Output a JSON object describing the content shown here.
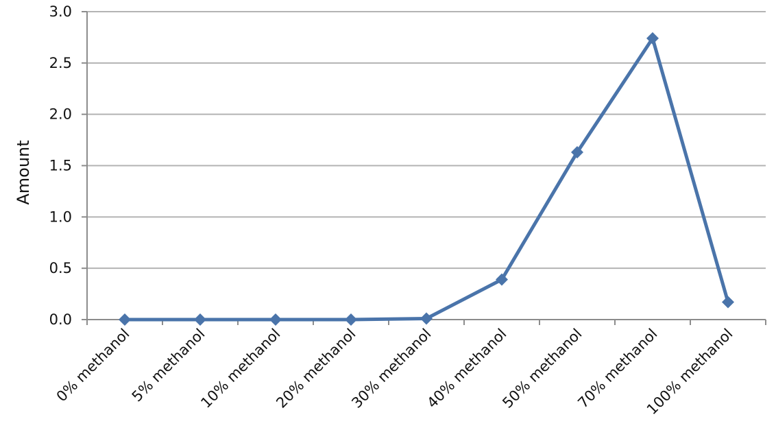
{
  "chart_data": {
    "type": "line",
    "title": "",
    "xlabel": "",
    "ylabel": "Amount",
    "categories": [
      "0% methanol",
      "5% methanol",
      "10% methanol",
      "20% methanol",
      "30% methanol",
      "40% methanol",
      "50% methanol",
      "70% methanol",
      "100% methanol"
    ],
    "series": [
      {
        "values": [
          0.0,
          0.0,
          0.0,
          0.0,
          0.01,
          0.39,
          1.63,
          2.74,
          0.17
        ]
      }
    ],
    "ylim": [
      0,
      3.0
    ],
    "yticks": [
      "0.0",
      "0.5",
      "1.0",
      "1.5",
      "2.0",
      "2.5",
      "3.0"
    ],
    "grid": true,
    "legend": "none",
    "marker": "diamond",
    "color": "#4a74aa"
  }
}
